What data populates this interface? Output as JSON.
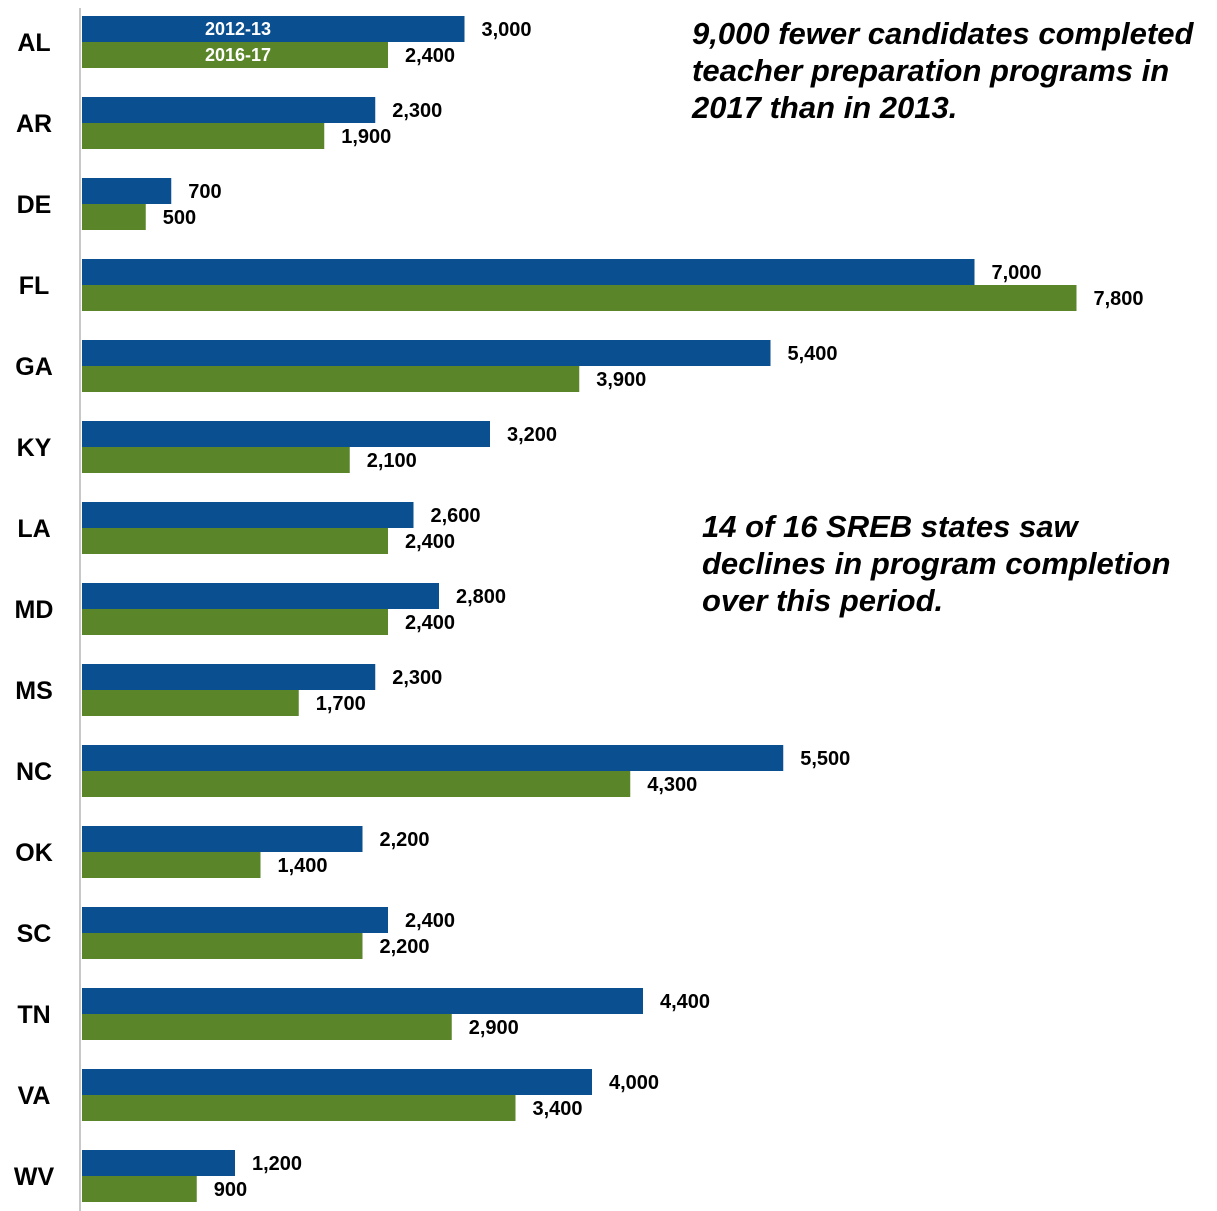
{
  "chart_data": {
    "type": "bar",
    "orientation": "horizontal",
    "categories": [
      "AL",
      "AR",
      "DE",
      "FL",
      "GA",
      "KY",
      "LA",
      "MD",
      "MS",
      "NC",
      "OK",
      "SC",
      "TN",
      "VA",
      "WV"
    ],
    "series": [
      {
        "name": "2012-13",
        "color": "#0a4f8f",
        "values": [
          3000,
          2300,
          700,
          7000,
          5400,
          3200,
          2600,
          2800,
          2300,
          5500,
          2200,
          2400,
          4400,
          4000,
          1200
        ],
        "labels": [
          "3,000",
          "2,300",
          "700",
          "7,000",
          "5,400",
          "3,200",
          "2,600",
          "2,800",
          "2,300",
          "5,500",
          "2,200",
          "2,400",
          "4,400",
          "4,000",
          "1,200"
        ]
      },
      {
        "name": "2016-17",
        "color": "#5b8529",
        "values": [
          2400,
          1900,
          500,
          7800,
          3900,
          2100,
          2400,
          2400,
          1700,
          4300,
          1400,
          2200,
          2900,
          3400,
          900
        ],
        "labels": [
          "2,400",
          "1,900",
          "500",
          "7,800",
          "3,900",
          "2,100",
          "2,400",
          "2,400",
          "1,700",
          "4,300",
          "1,400",
          "2,200",
          "2,900",
          "3,400",
          "900"
        ]
      }
    ],
    "legend_placement": "inside-first-bars",
    "grid": false,
    "xlim": [
      0,
      8000
    ],
    "title": "",
    "xlabel": "",
    "ylabel": ""
  },
  "annotations": [
    {
      "lines": [
        "9,000 fewer candidates completed",
        "teacher preparation programs in",
        "2017 than in 2013."
      ]
    },
    {
      "lines": [
        "14 of 16 SREB states saw",
        "declines in program completion",
        "over this period."
      ]
    }
  ],
  "colors": {
    "axis": "#c8c8c8",
    "text": "#000000"
  }
}
